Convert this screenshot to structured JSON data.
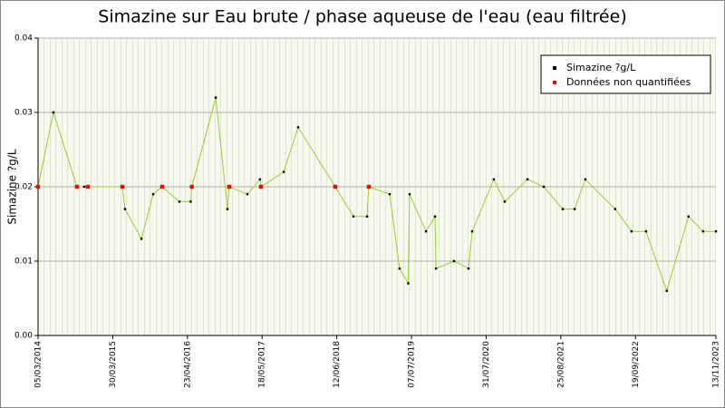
{
  "chart_data": {
    "type": "line",
    "title": "Simazine sur Eau brute / phase aqueuse de l'eau (eau filtrée)",
    "y_label": "Simazine ?g/L",
    "ylim": [
      0,
      0.04
    ],
    "yticks": [
      {
        "value": 0,
        "label": "0.00"
      },
      {
        "value": 0.01,
        "label": "0.01"
      },
      {
        "value": 0.02,
        "label": "0.02"
      },
      {
        "value": 0.03,
        "label": "0.03"
      },
      {
        "value": 0.04,
        "label": "0.04"
      }
    ],
    "xlim": [
      "05/03/2014",
      "13/11/2023"
    ],
    "xticks": [
      "05/03/2014",
      "30/03/2015",
      "23/04/2016",
      "18/05/2017",
      "12/06/2018",
      "07/07/2019",
      "31/07/2020",
      "25/08/2021",
      "19/09/2022",
      "13/11/2023"
    ],
    "grid": true,
    "legend": "upper right",
    "series": [
      {
        "name": "Simazine ?g/L",
        "color": "#000000",
        "line_color": "#99cc33",
        "x": [
          "05/03/2014",
          "24/05/2014",
          "24/09/2014",
          "01/11/2014",
          "20/11/2014",
          "19/05/2015",
          "02/06/2015",
          "27/08/2015",
          "27/10/2015",
          "13/12/2015",
          "12/03/2016",
          "10/05/2016",
          "16/05/2016",
          "18/09/2016",
          "18/11/2016",
          "27/11/2016",
          "02/03/2017",
          "07/05/2017",
          "12/05/2017",
          "08/09/2017",
          "22/11/2017",
          "04/06/2018",
          "07/09/2018",
          "17/11/2018",
          "26/11/2018",
          "15/03/2019",
          "06/05/2019",
          "20/06/2019",
          "27/06/2019",
          "21/09/2019",
          "07/11/2019",
          "12/11/2019",
          "14/02/2020",
          "30/04/2020",
          "19/05/2020",
          "09/09/2020",
          "05/11/2020",
          "04/03/2021",
          "28/05/2021",
          "04/09/2021",
          "05/11/2021",
          "31/12/2021",
          "05/06/2022",
          "29/08/2022",
          "13/11/2022",
          "01/03/2023",
          "23/06/2023",
          "07/09/2023",
          "13/11/2023"
        ],
        "values": [
          0.02,
          0.03,
          0.02,
          0.02,
          0.02,
          0.02,
          0.017,
          0.013,
          0.019,
          0.02,
          0.018,
          0.018,
          0.02,
          0.032,
          0.017,
          0.02,
          0.019,
          0.021,
          0.02,
          0.022,
          0.028,
          0.02,
          0.016,
          0.016,
          0.02,
          0.019,
          0.009,
          0.007,
          0.019,
          0.014,
          0.016,
          0.009,
          0.01,
          0.009,
          0.014,
          0.021,
          0.018,
          0.021,
          0.02,
          0.017,
          0.017,
          0.021,
          0.017,
          0.014,
          0.014,
          0.006,
          0.016,
          0.014,
          0.014
        ]
      },
      {
        "name": "Données non quantifiées",
        "color": "#ff0000",
        "x": [
          "05/03/2014",
          "24/09/2014",
          "20/11/2014",
          "19/05/2015",
          "13/12/2015",
          "16/05/2016",
          "27/11/2016",
          "12/05/2017",
          "04/06/2018",
          "26/11/2018"
        ],
        "values": [
          0.02,
          0.02,
          0.02,
          0.02,
          0.02,
          0.02,
          0.02,
          0.02,
          0.02,
          0.02
        ]
      }
    ]
  }
}
